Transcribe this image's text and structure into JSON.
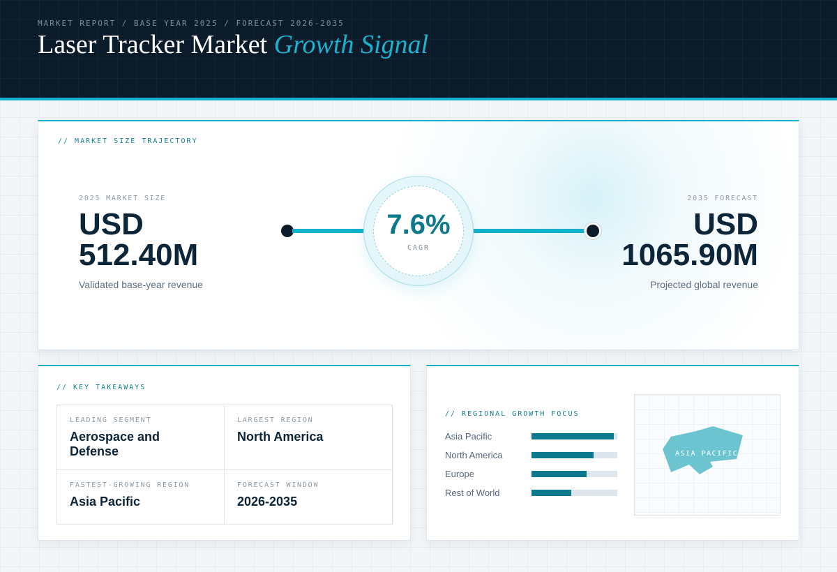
{
  "header": {
    "eyebrow": "MARKET REPORT / BASE YEAR 2025 / FORECAST 2026-2035",
    "title_main": "Laser Tracker Market",
    "title_accent": "Growth Signal"
  },
  "trajectory": {
    "section_label": "// MARKET SIZE TRAJECTORY",
    "start": {
      "label": "2025 MARKET SIZE",
      "currency": "USD",
      "value": "512.40M",
      "caption": "Validated base-year revenue"
    },
    "end": {
      "label": "2035 FORECAST",
      "currency": "USD",
      "value": "1065.90M",
      "caption": "Projected global revenue"
    },
    "cagr": {
      "value": "7.6%",
      "label": "CAGR"
    }
  },
  "takeaways": {
    "section_label": "// KEY TAKEAWAYS",
    "items": [
      {
        "label": "LEADING SEGMENT",
        "value": "Aerospace and Defense"
      },
      {
        "label": "LARGEST REGION",
        "value": "North America"
      },
      {
        "label": "FASTEST-GROWING REGION",
        "value": "Asia Pacific"
      },
      {
        "label": "FORECAST WINDOW",
        "value": "2026-2035"
      }
    ]
  },
  "regional": {
    "section_label": "// REGIONAL GROWTH FOCUS",
    "map_label": "ASIA PACIFIC"
  },
  "colors": {
    "accent": "#11b1cc",
    "bar": "#0c7a8c",
    "navy": "#0b1b29",
    "map": "#6cc4d0"
  },
  "chart_data": {
    "type": "bar",
    "orientation": "horizontal",
    "categories": [
      "Asia Pacific",
      "North America",
      "Europe",
      "Rest of World"
    ],
    "values": [
      0.96,
      0.72,
      0.64,
      0.46
    ],
    "ylim": [
      0,
      1
    ]
  }
}
